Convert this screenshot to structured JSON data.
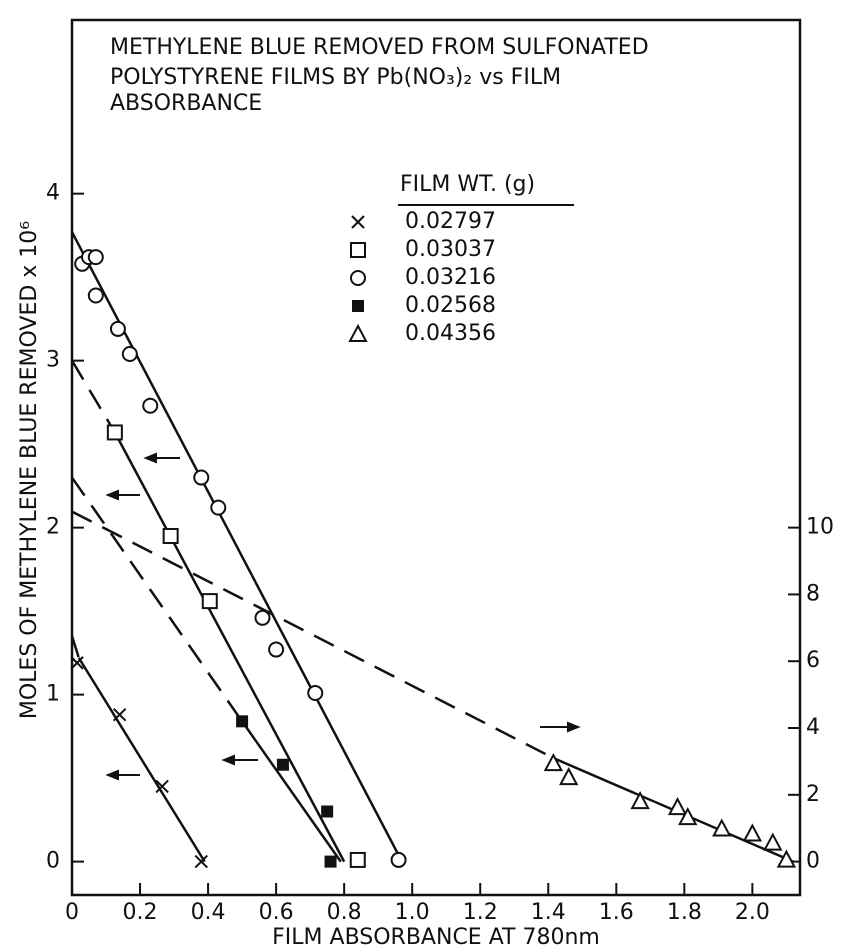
{
  "chart_data": {
    "type": "scatter",
    "title_lines": [
      "METHYLENE BLUE REMOVED FROM SULFONATED",
      "POLYSTYRENE FILMS BY Pb(NO₃)₂ vs FILM",
      "ABSORBANCE"
    ],
    "x_label": "FILM ABSORBANCE AT 780nm",
    "y_label": "MOLES OF METHYLENE BLUE REMOVED x 10⁶",
    "legend_title": "FILM WT. (g)",
    "xlim": [
      0,
      2.14
    ],
    "xticks": [
      0,
      0.2,
      0.4,
      0.6,
      0.8,
      {
        "value": 1,
        "label": "1.0"
      },
      1.2,
      1.4,
      1.6,
      1.8,
      {
        "value": 2,
        "label": "2.0"
      }
    ],
    "ylim": [
      -0.2,
      5.04
    ],
    "yticks": [
      0,
      1,
      2,
      3,
      4
    ],
    "y2lim": [
      -1,
      25.2
    ],
    "y2ticks": [
      0,
      2,
      4,
      6,
      8,
      10
    ],
    "color": "#111111",
    "series": [
      {
        "name": "0.02797",
        "marker": "x",
        "x": [
          0.015,
          0.14,
          0.265,
          0.38
        ],
        "values": [
          1.19,
          0.88,
          0.45,
          0
        ],
        "fit_dashed": {
          "x": [
            0,
            0.02
          ],
          "values": [
            1.35,
            1.22
          ]
        },
        "fit": {
          "x": [
            0.02,
            0.39
          ],
          "values": [
            1.22,
            0
          ]
        }
      },
      {
        "name": "0.03037",
        "marker": "square",
        "x": [
          0.126,
          0.29,
          0.405,
          0.84
        ],
        "values": [
          2.57,
          1.95,
          1.56,
          0.01
        ],
        "fit_dashed": {
          "x": [
            0,
            0.126
          ],
          "values": [
            3.0,
            2.57
          ]
        },
        "fit": {
          "x": [
            0.126,
            0.8
          ],
          "values": [
            2.57,
            0
          ]
        }
      },
      {
        "name": "0.03216",
        "marker": "circle",
        "x": [
          0.03,
          0.05,
          0.07,
          0.07,
          0.135,
          0.17,
          0.23,
          0.38,
          0.43,
          0.56,
          0.6,
          0.715,
          0.96
        ],
        "values": [
          3.58,
          3.62,
          3.62,
          3.39,
          3.19,
          3.04,
          2.73,
          2.3,
          2.12,
          1.46,
          1.27,
          1.01,
          0.01
        ],
        "fit": {
          "x": [
            0,
            0.97
          ],
          "values": [
            3.77,
            0
          ]
        }
      },
      {
        "name": "0.02568",
        "marker": "filled-square",
        "x": [
          0.5,
          0.62,
          0.75,
          0.76
        ],
        "values": [
          0.84,
          0.58,
          0.3,
          0
        ],
        "fit_dashed": {
          "x": [
            0,
            0.5
          ],
          "values": [
            2.3,
            0.84
          ]
        },
        "fit": {
          "x": [
            0.5,
            0.79
          ],
          "values": [
            0.84,
            0
          ]
        }
      },
      {
        "name": "0.04356",
        "marker": "triangle",
        "axis": "y2",
        "x": [
          1.415,
          1.46,
          1.67,
          1.78,
          1.81,
          1.91,
          2.0,
          2.06,
          2.1
        ],
        "values": [
          2.95,
          2.53,
          1.81,
          1.63,
          1.33,
          0.99,
          0.84,
          0.57,
          0.06
        ],
        "fit_dashed": {
          "x": [
            0,
            1.415
          ],
          "values": [
            10.48,
            3.1
          ]
        },
        "fit": {
          "x": [
            1.415,
            2.12
          ],
          "values": [
            3.1,
            0
          ]
        }
      }
    ]
  }
}
